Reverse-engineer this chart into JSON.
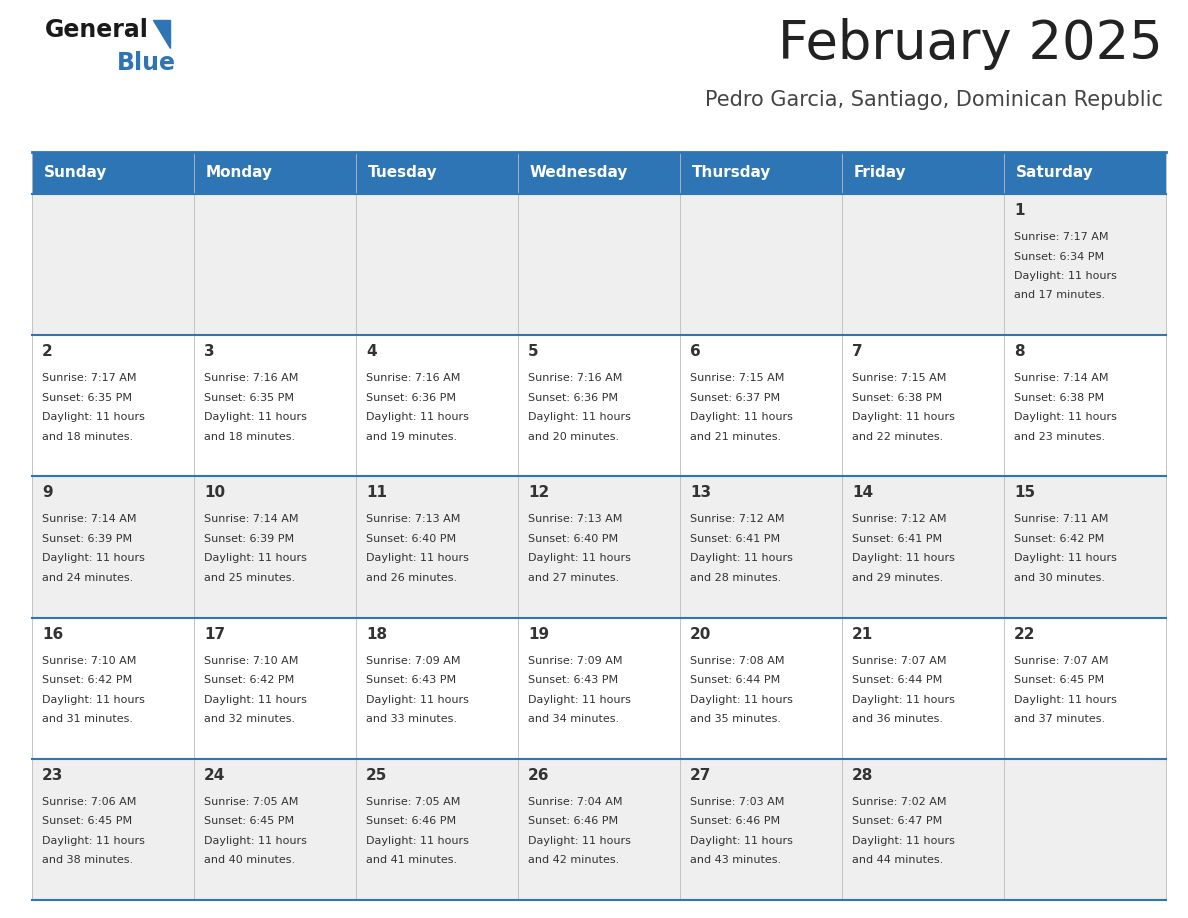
{
  "title": "February 2025",
  "subtitle": "Pedro Garcia, Santiago, Dominican Republic",
  "header_bg": "#2E75B6",
  "header_text_color": "#FFFFFF",
  "cell_bg_even": "#EFEFEF",
  "cell_bg_odd": "#FFFFFF",
  "border_color": "#2E75B6",
  "text_color": "#333333",
  "days_of_week": [
    "Sunday",
    "Monday",
    "Tuesday",
    "Wednesday",
    "Thursday",
    "Friday",
    "Saturday"
  ],
  "title_color": "#222222",
  "subtitle_color": "#444444",
  "logo_general_color": "#1A1A1A",
  "logo_blue_color": "#2E75B6",
  "calendar": [
    [
      null,
      null,
      null,
      null,
      null,
      null,
      {
        "day": "1",
        "sunrise": "7:17 AM",
        "sunset": "6:34 PM",
        "daylight": "11 hours",
        "daylight2": "and 17 minutes."
      }
    ],
    [
      {
        "day": "2",
        "sunrise": "7:17 AM",
        "sunset": "6:35 PM",
        "daylight": "11 hours",
        "daylight2": "and 18 minutes."
      },
      {
        "day": "3",
        "sunrise": "7:16 AM",
        "sunset": "6:35 PM",
        "daylight": "11 hours",
        "daylight2": "and 18 minutes."
      },
      {
        "day": "4",
        "sunrise": "7:16 AM",
        "sunset": "6:36 PM",
        "daylight": "11 hours",
        "daylight2": "and 19 minutes."
      },
      {
        "day": "5",
        "sunrise": "7:16 AM",
        "sunset": "6:36 PM",
        "daylight": "11 hours",
        "daylight2": "and 20 minutes."
      },
      {
        "day": "6",
        "sunrise": "7:15 AM",
        "sunset": "6:37 PM",
        "daylight": "11 hours",
        "daylight2": "and 21 minutes."
      },
      {
        "day": "7",
        "sunrise": "7:15 AM",
        "sunset": "6:38 PM",
        "daylight": "11 hours",
        "daylight2": "and 22 minutes."
      },
      {
        "day": "8",
        "sunrise": "7:14 AM",
        "sunset": "6:38 PM",
        "daylight": "11 hours",
        "daylight2": "and 23 minutes."
      }
    ],
    [
      {
        "day": "9",
        "sunrise": "7:14 AM",
        "sunset": "6:39 PM",
        "daylight": "11 hours",
        "daylight2": "and 24 minutes."
      },
      {
        "day": "10",
        "sunrise": "7:14 AM",
        "sunset": "6:39 PM",
        "daylight": "11 hours",
        "daylight2": "and 25 minutes."
      },
      {
        "day": "11",
        "sunrise": "7:13 AM",
        "sunset": "6:40 PM",
        "daylight": "11 hours",
        "daylight2": "and 26 minutes."
      },
      {
        "day": "12",
        "sunrise": "7:13 AM",
        "sunset": "6:40 PM",
        "daylight": "11 hours",
        "daylight2": "and 27 minutes."
      },
      {
        "day": "13",
        "sunrise": "7:12 AM",
        "sunset": "6:41 PM",
        "daylight": "11 hours",
        "daylight2": "and 28 minutes."
      },
      {
        "day": "14",
        "sunrise": "7:12 AM",
        "sunset": "6:41 PM",
        "daylight": "11 hours",
        "daylight2": "and 29 minutes."
      },
      {
        "day": "15",
        "sunrise": "7:11 AM",
        "sunset": "6:42 PM",
        "daylight": "11 hours",
        "daylight2": "and 30 minutes."
      }
    ],
    [
      {
        "day": "16",
        "sunrise": "7:10 AM",
        "sunset": "6:42 PM",
        "daylight": "11 hours",
        "daylight2": "and 31 minutes."
      },
      {
        "day": "17",
        "sunrise": "7:10 AM",
        "sunset": "6:42 PM",
        "daylight": "11 hours",
        "daylight2": "and 32 minutes."
      },
      {
        "day": "18",
        "sunrise": "7:09 AM",
        "sunset": "6:43 PM",
        "daylight": "11 hours",
        "daylight2": "and 33 minutes."
      },
      {
        "day": "19",
        "sunrise": "7:09 AM",
        "sunset": "6:43 PM",
        "daylight": "11 hours",
        "daylight2": "and 34 minutes."
      },
      {
        "day": "20",
        "sunrise": "7:08 AM",
        "sunset": "6:44 PM",
        "daylight": "11 hours",
        "daylight2": "and 35 minutes."
      },
      {
        "day": "21",
        "sunrise": "7:07 AM",
        "sunset": "6:44 PM",
        "daylight": "11 hours",
        "daylight2": "and 36 minutes."
      },
      {
        "day": "22",
        "sunrise": "7:07 AM",
        "sunset": "6:45 PM",
        "daylight": "11 hours",
        "daylight2": "and 37 minutes."
      }
    ],
    [
      {
        "day": "23",
        "sunrise": "7:06 AM",
        "sunset": "6:45 PM",
        "daylight": "11 hours",
        "daylight2": "and 38 minutes."
      },
      {
        "day": "24",
        "sunrise": "7:05 AM",
        "sunset": "6:45 PM",
        "daylight": "11 hours",
        "daylight2": "and 40 minutes."
      },
      {
        "day": "25",
        "sunrise": "7:05 AM",
        "sunset": "6:46 PM",
        "daylight": "11 hours",
        "daylight2": "and 41 minutes."
      },
      {
        "day": "26",
        "sunrise": "7:04 AM",
        "sunset": "6:46 PM",
        "daylight": "11 hours",
        "daylight2": "and 42 minutes."
      },
      {
        "day": "27",
        "sunrise": "7:03 AM",
        "sunset": "6:46 PM",
        "daylight": "11 hours",
        "daylight2": "and 43 minutes."
      },
      {
        "day": "28",
        "sunrise": "7:02 AM",
        "sunset": "6:47 PM",
        "daylight": "11 hours",
        "daylight2": "and 44 minutes."
      },
      null
    ]
  ]
}
